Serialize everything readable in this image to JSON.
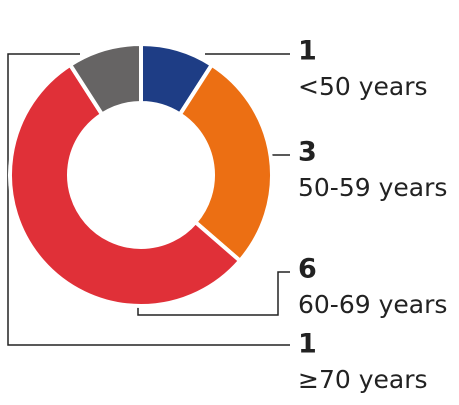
{
  "chart_data": {
    "type": "donut",
    "categories": [
      "<50 years",
      "50-59 years",
      "60-69 years",
      "≥70 years"
    ],
    "values": [
      1,
      3,
      6,
      1
    ],
    "colors": [
      "#1e3d85",
      "#ec6f13",
      "#e03038",
      "#666464"
    ]
  }
}
